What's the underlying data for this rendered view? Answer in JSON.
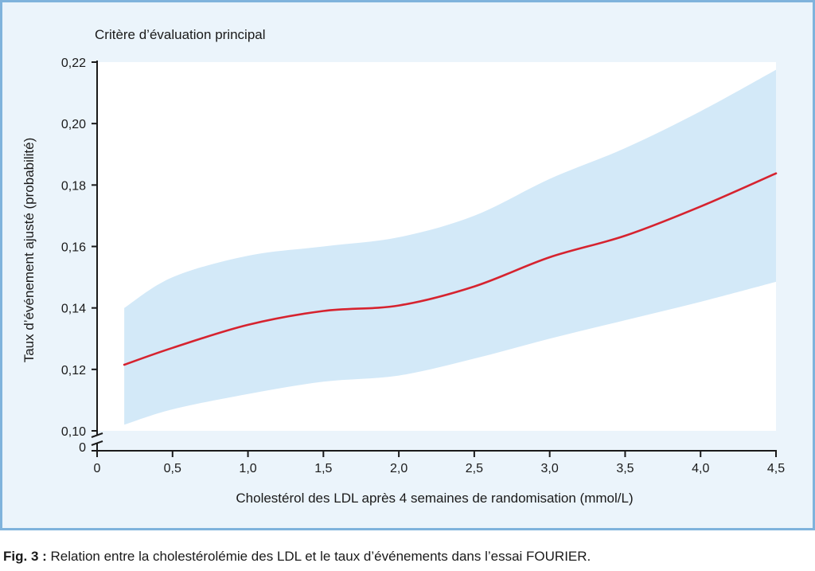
{
  "chart_data": {
    "type": "line",
    "subtitle": "Critère d’évaluation principal",
    "xlabel": "Cholestérol des LDL après 4 semaines de randomisation (mmol/L)",
    "ylabel": "Taux d’événement ajusté (probabilité)",
    "xlim": [
      0,
      4.5
    ],
    "ylim": [
      0.1,
      0.22
    ],
    "axis_break": true,
    "y_zero_label": "0",
    "x_ticks": [
      {
        "value": 0,
        "label": "0"
      },
      {
        "value": 0.5,
        "label": "0,5"
      },
      {
        "value": 1.0,
        "label": "1,0"
      },
      {
        "value": 1.5,
        "label": "1,5"
      },
      {
        "value": 2.0,
        "label": "2,0"
      },
      {
        "value": 2.5,
        "label": "2,5"
      },
      {
        "value": 3.0,
        "label": "3,0"
      },
      {
        "value": 3.5,
        "label": "3,5"
      },
      {
        "value": 4.0,
        "label": "4,0"
      },
      {
        "value": 4.5,
        "label": "4,5"
      }
    ],
    "y_ticks": [
      {
        "value": 0.1,
        "label": "0,10"
      },
      {
        "value": 0.12,
        "label": "0,12"
      },
      {
        "value": 0.14,
        "label": "0,14"
      },
      {
        "value": 0.16,
        "label": "0,16"
      },
      {
        "value": 0.18,
        "label": "0,18"
      },
      {
        "value": 0.2,
        "label": "0,20"
      },
      {
        "value": 0.22,
        "label": "0,22"
      }
    ],
    "x": [
      0.18,
      0.5,
      1.0,
      1.5,
      2.0,
      2.5,
      3.0,
      3.5,
      4.0,
      4.5
    ],
    "y": [
      0.1215,
      0.127,
      0.1345,
      0.139,
      0.1408,
      0.147,
      0.1565,
      0.1635,
      0.173,
      0.1838
    ],
    "ci_upper": [
      0.14,
      0.15,
      0.157,
      0.16,
      0.163,
      0.17,
      0.182,
      0.192,
      0.204,
      0.2175
    ],
    "ci_lower": [
      0.102,
      0.107,
      0.112,
      0.116,
      0.118,
      0.1235,
      0.13,
      0.136,
      0.142,
      0.1485
    ],
    "colors": {
      "line": "#d6232f",
      "band": "#d3e9f8",
      "panel_background": "#ebf4fb",
      "panel_border": "#7fb3dc",
      "axis": "#1a1a1a"
    }
  },
  "caption": {
    "label": "Fig. 3 :",
    "text": " Relation entre la cholestérolémie des LDL et le taux d’événements dans l’essai FOURIER."
  }
}
